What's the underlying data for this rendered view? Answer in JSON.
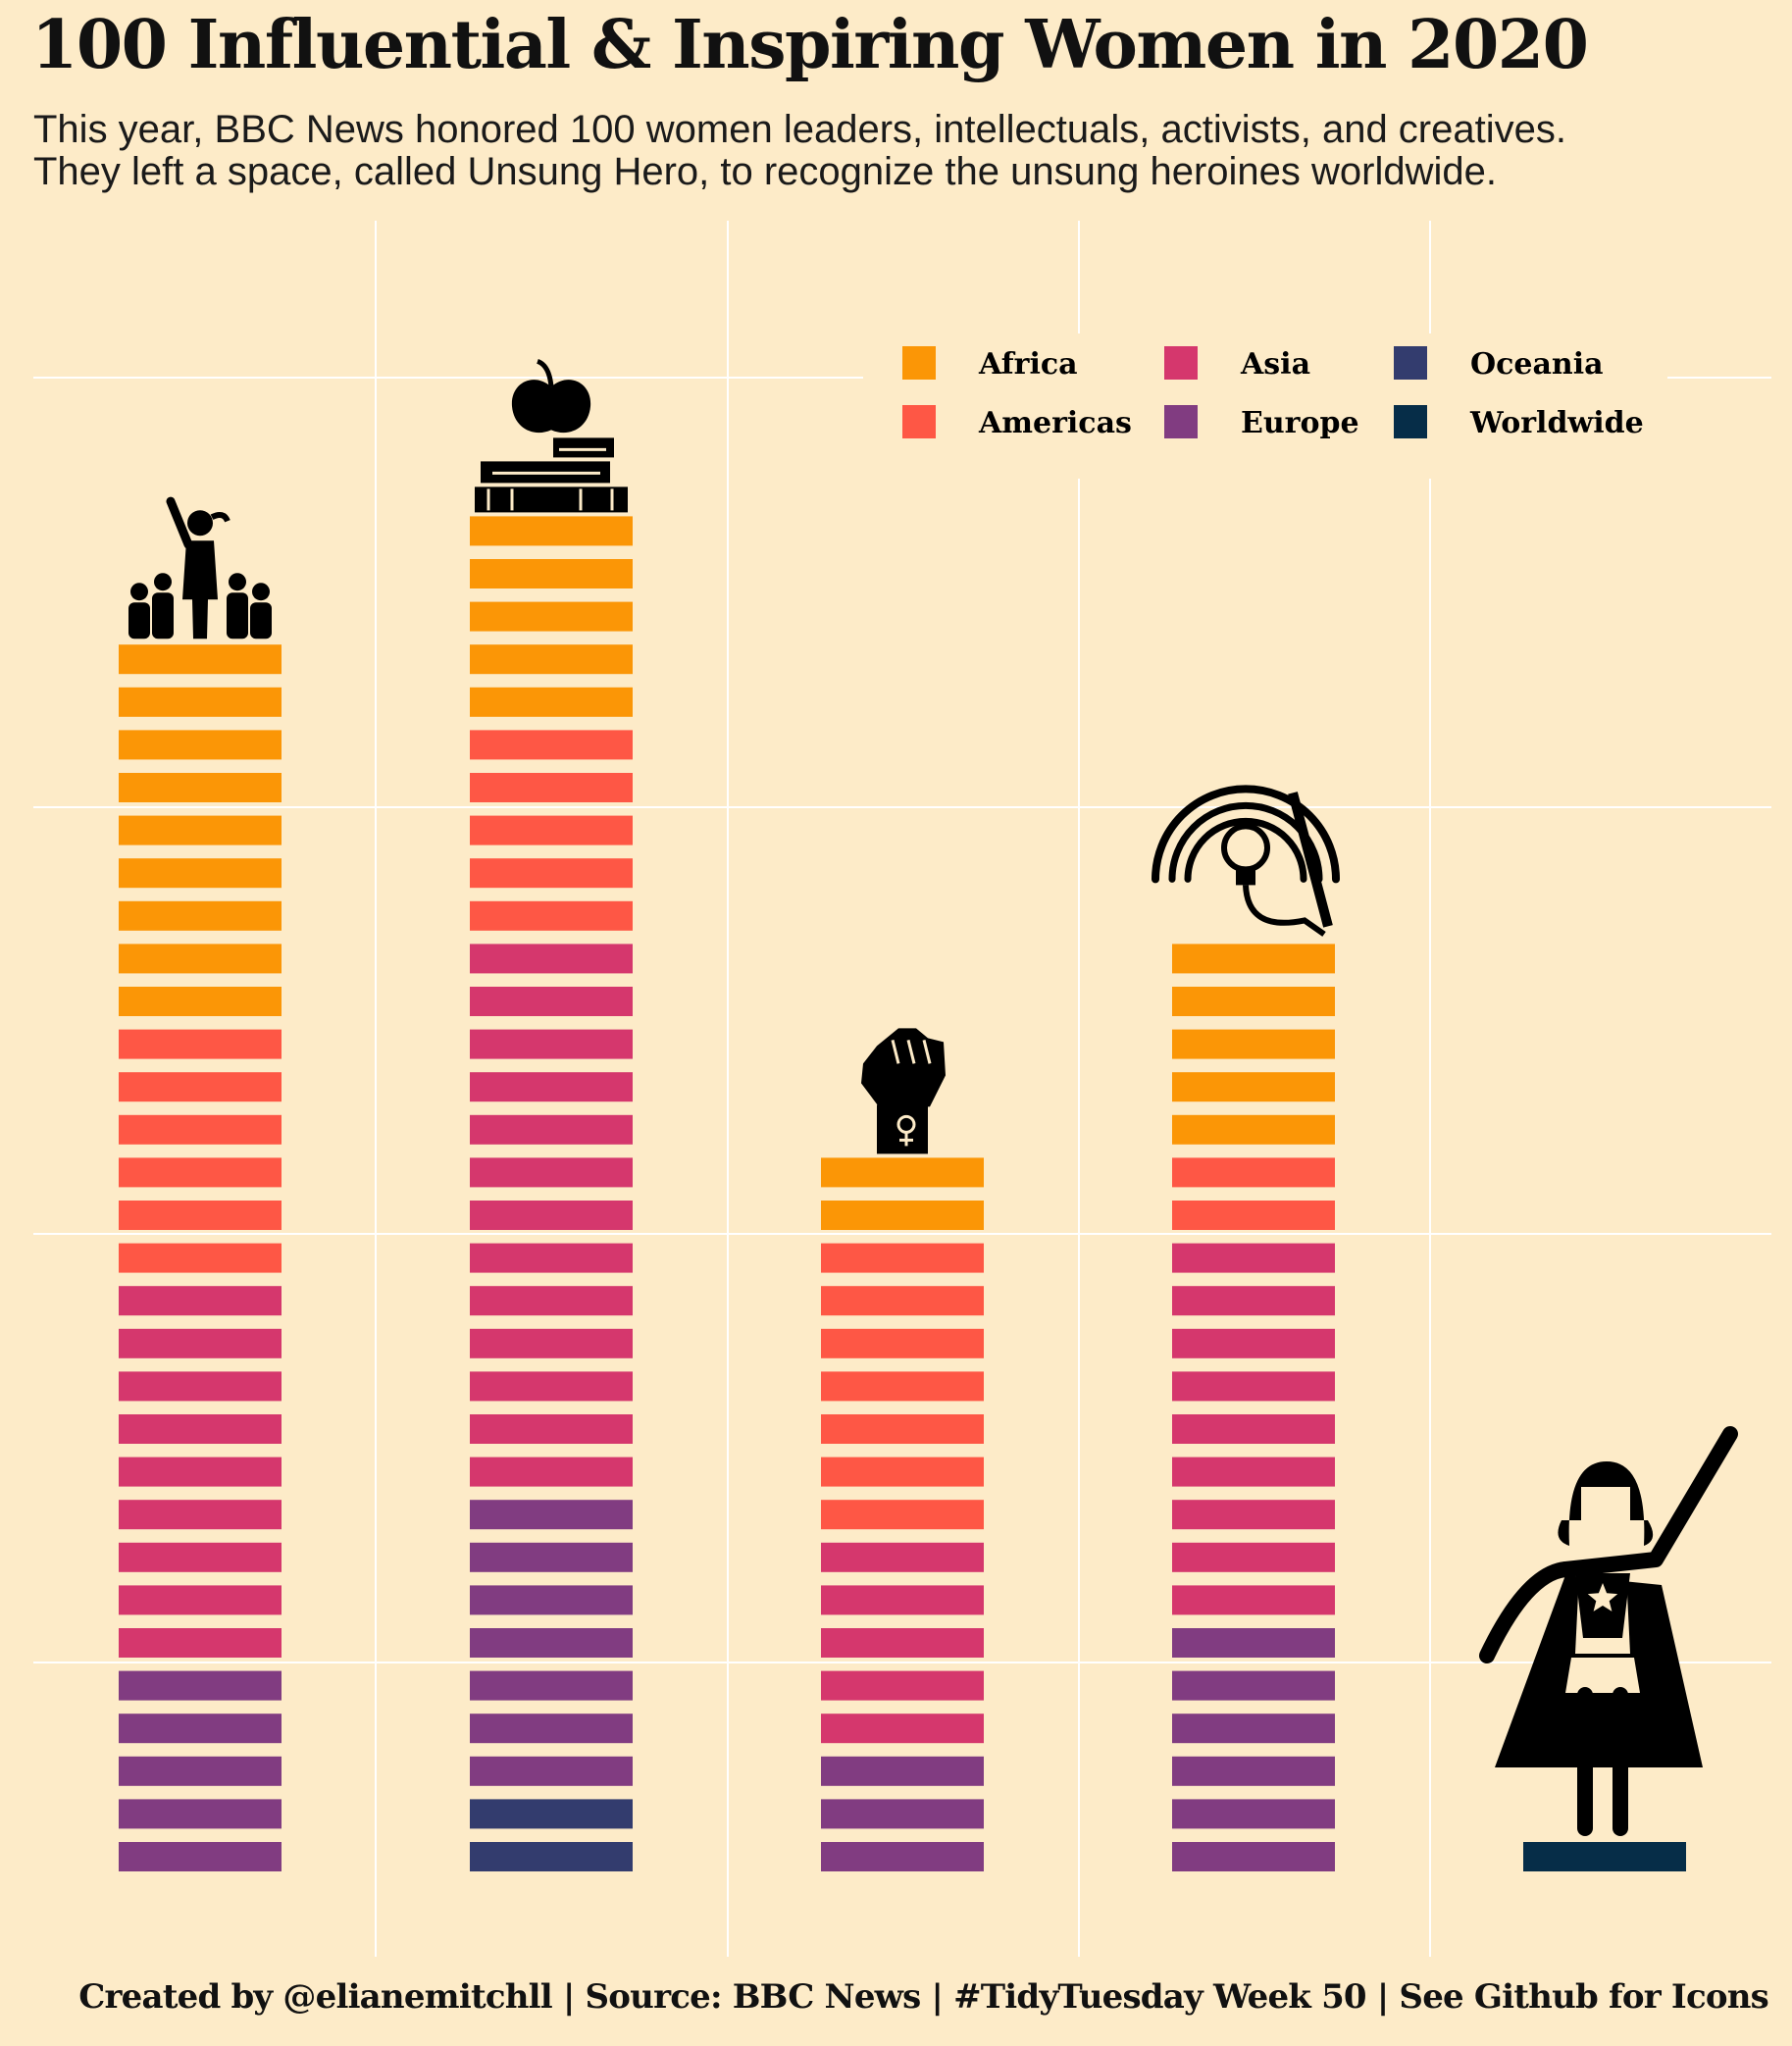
{
  "title": "100 Influential & Inspiring Women in 2020",
  "subtitle_line1": "This year, BBC News honored 100 women leaders, intellectuals, activists, and creatives.",
  "subtitle_line2": "They left a space, called Unsung Hero, to recognize the unsung heroines worldwide.",
  "caption": "Created by @elianemitchll | Source: BBC News | #TidyTuesday Week 50 | See Github for Icons",
  "chart_data": {
    "type": "bar",
    "stacked": true,
    "unit": "one bar segment per woman",
    "categories": [
      "Leadership",
      "Knowledge",
      "Identity",
      "Creativity",
      "Unsung Hero"
    ],
    "category_icons": [
      "leader-with-group-icon",
      "apple-on-books-icon",
      "raised-fist-female-symbol-icon",
      "lightbulb-head-pencil-icon",
      "superhero-woman-icon"
    ],
    "series": [
      {
        "name": "Africa",
        "color": "#fb9606",
        "values": [
          9,
          5,
          2,
          5,
          0
        ]
      },
      {
        "name": "Americas",
        "color": "#fe5745",
        "values": [
          6,
          5,
          7,
          2,
          0
        ]
      },
      {
        "name": "Asia",
        "color": "#d5376d",
        "values": [
          9,
          13,
          5,
          9,
          0
        ]
      },
      {
        "name": "Europe",
        "color": "#813c81",
        "values": [
          5,
          7,
          3,
          6,
          0
        ]
      },
      {
        "name": "Oceania",
        "color": "#333c6e",
        "values": [
          0,
          2,
          0,
          0,
          0
        ]
      },
      {
        "name": "Worldwide",
        "color": "#062d48",
        "values": [
          0,
          0,
          0,
          0,
          1
        ]
      }
    ],
    "legend_position": "top-right",
    "grid": true,
    "axis_labels_shown": false
  }
}
